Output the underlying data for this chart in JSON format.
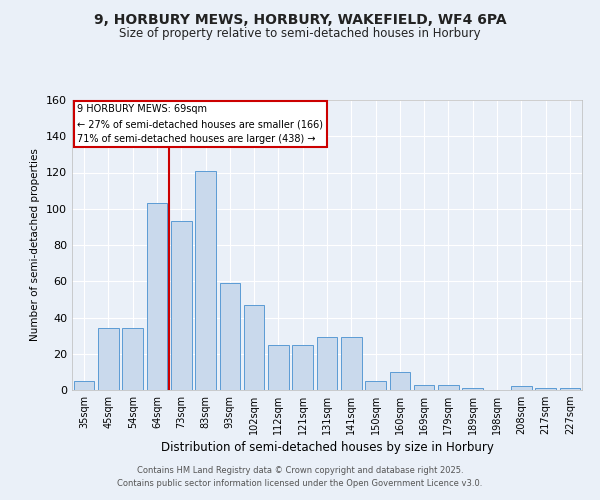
{
  "title1": "9, HORBURY MEWS, HORBURY, WAKEFIELD, WF4 6PA",
  "title2": "Size of property relative to semi-detached houses in Horbury",
  "xlabel": "Distribution of semi-detached houses by size in Horbury",
  "ylabel": "Number of semi-detached properties",
  "categories": [
    "35sqm",
    "45sqm",
    "54sqm",
    "64sqm",
    "73sqm",
    "83sqm",
    "93sqm",
    "102sqm",
    "112sqm",
    "121sqm",
    "131sqm",
    "141sqm",
    "150sqm",
    "160sqm",
    "169sqm",
    "179sqm",
    "189sqm",
    "198sqm",
    "208sqm",
    "217sqm",
    "227sqm"
  ],
  "values": [
    5,
    34,
    34,
    103,
    93,
    121,
    59,
    47,
    25,
    25,
    29,
    29,
    5,
    10,
    3,
    3,
    1,
    0,
    2,
    1,
    1
  ],
  "bar_color": "#c9d9ec",
  "bar_edge_color": "#5b9bd5",
  "vline_x": 3.5,
  "vline_color": "#cc0000",
  "annotation_title": "9 HORBURY MEWS: 69sqm",
  "annotation_line1": "← 27% of semi-detached houses are smaller (166)",
  "annotation_line2": "71% of semi-detached houses are larger (438) →",
  "annotation_box_color": "#cc0000",
  "ylim": [
    0,
    160
  ],
  "yticks": [
    0,
    20,
    40,
    60,
    80,
    100,
    120,
    140,
    160
  ],
  "footer1": "Contains HM Land Registry data © Crown copyright and database right 2025.",
  "footer2": "Contains public sector information licensed under the Open Government Licence v3.0.",
  "bg_color": "#eaf0f8"
}
